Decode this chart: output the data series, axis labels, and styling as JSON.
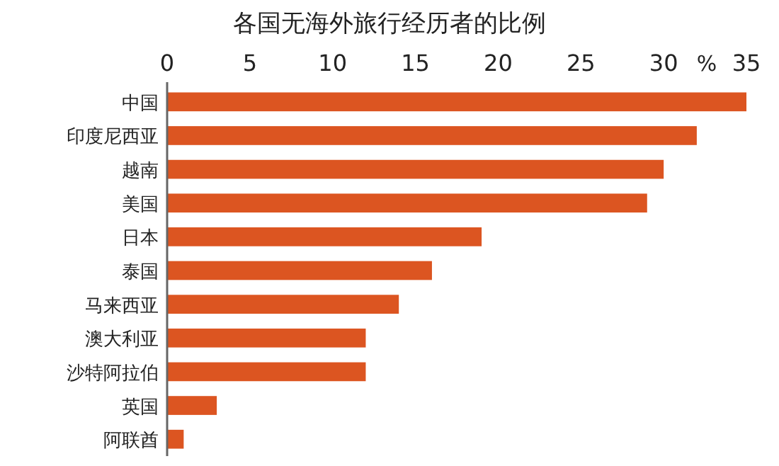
{
  "chart_data": {
    "type": "bar",
    "orientation": "horizontal",
    "title": "各国无海外旅行经历者的比例",
    "xlabel": "%",
    "categories": [
      "中国",
      "印度尼西亚",
      "越南",
      "美国",
      "日本",
      "泰国",
      "马来西亚",
      "澳大利亚",
      "沙特阿拉伯",
      "英国",
      "阿联酋"
    ],
    "values": [
      35,
      32,
      30,
      29,
      19,
      16,
      14,
      12,
      12,
      3,
      1
    ],
    "color": "#dc5521",
    "xlim": [
      0,
      35
    ],
    "xticks": [
      0,
      5,
      10,
      15,
      20,
      25,
      30,
      35
    ],
    "grid": false
  }
}
